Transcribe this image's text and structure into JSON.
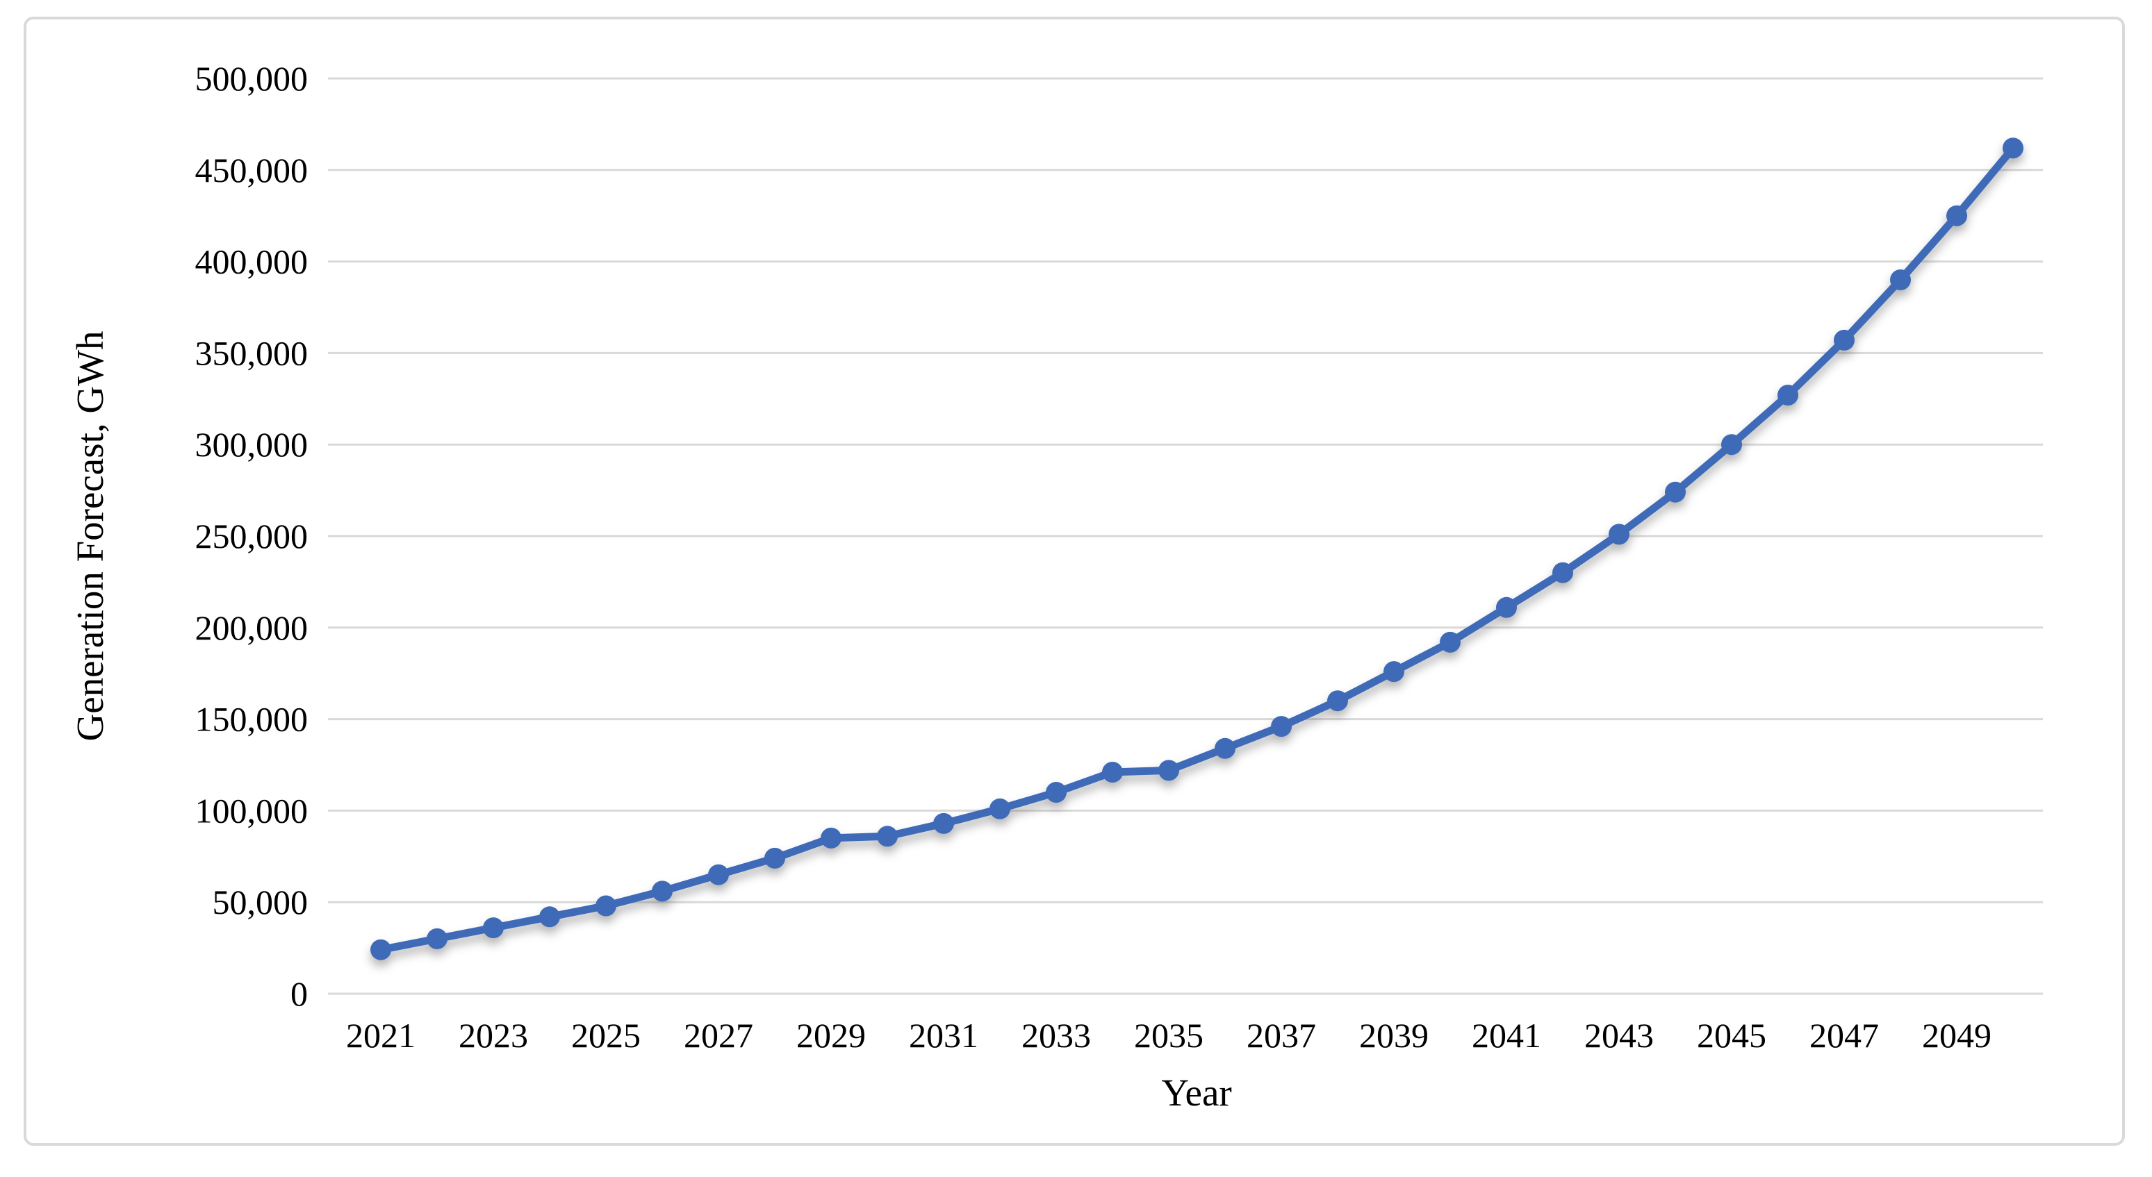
{
  "figure": {
    "background_color": "#ffffff",
    "border_color": "#d9d9d9"
  },
  "chart_data": {
    "type": "line",
    "title": "",
    "xlabel": "Year",
    "ylabel": "Generation Forecast, GWh",
    "x": [
      2021,
      2022,
      2023,
      2024,
      2025,
      2026,
      2027,
      2028,
      2029,
      2030,
      2031,
      2032,
      2033,
      2034,
      2035,
      2036,
      2037,
      2038,
      2039,
      2040,
      2041,
      2042,
      2043,
      2044,
      2045,
      2046,
      2047,
      2048,
      2049,
      2050
    ],
    "series": [
      {
        "name": "Generation Forecast, GWh",
        "color": "#3e6ab8",
        "values": [
          24000,
          30000,
          36000,
          42000,
          48000,
          56000,
          65000,
          74000,
          85000,
          86000,
          93000,
          101000,
          110000,
          121000,
          122000,
          134000,
          146000,
          160000,
          176000,
          192000,
          211000,
          230000,
          251000,
          274000,
          300000,
          327000,
          357000,
          390000,
          425000,
          462000
        ]
      }
    ],
    "ylim": [
      0,
      500000
    ],
    "ytick_step": 50000,
    "ytick_labels": [
      "0",
      "50,000",
      "100,000",
      "150,000",
      "200,000",
      "250,000",
      "300,000",
      "350,000",
      "400,000",
      "450,000",
      "500,000"
    ],
    "xtick_labels": [
      "2021",
      "2023",
      "2025",
      "2027",
      "2029",
      "2031",
      "2033",
      "2035",
      "2037",
      "2039",
      "2041",
      "2043",
      "2045",
      "2047",
      "2049"
    ],
    "grid": "horizontal",
    "legend": "none",
    "marker": "circle"
  }
}
